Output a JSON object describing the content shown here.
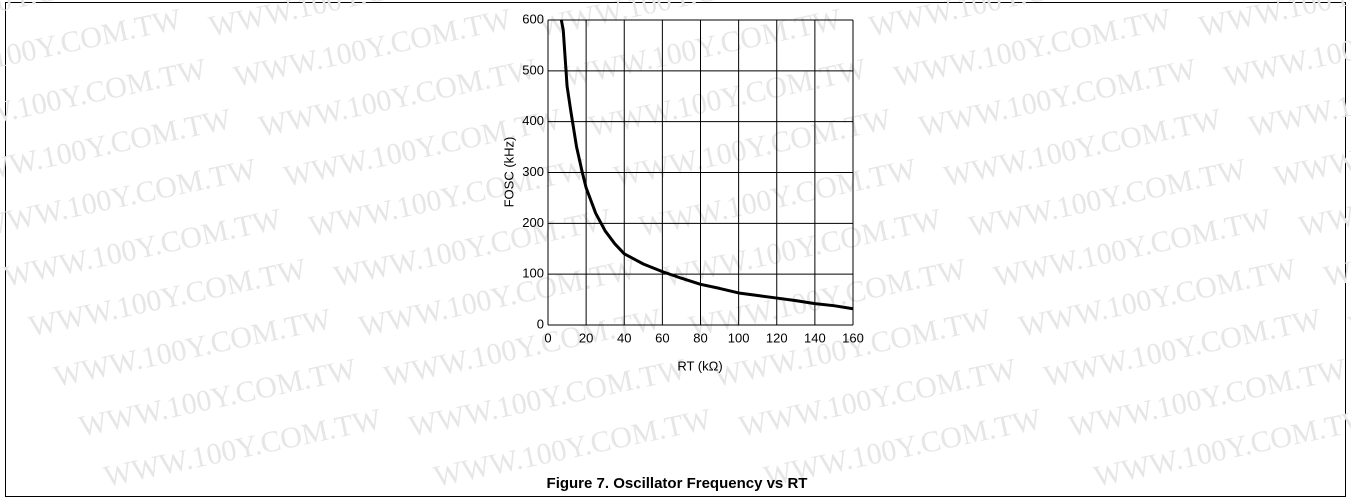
{
  "chart_data": {
    "type": "line",
    "caption": "Figure 7. Oscillator Frequency vs RT",
    "xlabel": "RT (kΩ)",
    "ylabel": "FOSC (kHz)",
    "watermark": "WWW.100Y.COM.TW",
    "x": [
      7,
      8,
      10,
      12,
      15,
      18,
      20,
      25,
      30,
      35,
      40,
      50,
      60,
      70,
      80,
      90,
      100,
      110,
      120,
      130,
      140,
      150,
      160
    ],
    "series": [
      {
        "name": "FOSC",
        "color": "#000000",
        "values": [
          600,
          580,
          470,
          420,
          350,
          300,
          270,
          220,
          185,
          160,
          140,
          120,
          105,
          92,
          80,
          72,
          63,
          58,
          53,
          48,
          42,
          38,
          32
        ]
      }
    ],
    "xlim": [
      0,
      160
    ],
    "xticks": [
      0,
      20,
      40,
      60,
      80,
      100,
      120,
      140,
      160
    ],
    "ylim": [
      0,
      600
    ],
    "yticks": [
      0,
      100,
      200,
      300,
      400,
      500,
      600
    ],
    "grid": true
  }
}
